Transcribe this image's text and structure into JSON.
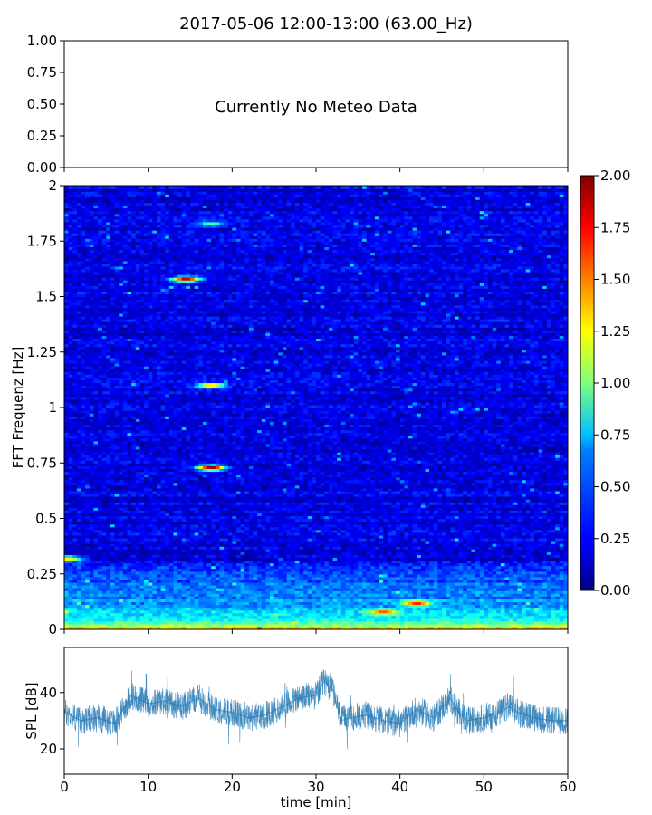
{
  "chart_data": [
    {
      "type": "text-panel",
      "title": "2017-05-06 12:00-13:00 (63.00_Hz)",
      "message": "Currently No Meteo Data",
      "ylim": [
        0,
        1
      ],
      "yticks": [
        {
          "v": 0.0,
          "label": "0.00"
        },
        {
          "v": 0.25,
          "label": "0.25"
        },
        {
          "v": 0.5,
          "label": "0.50"
        },
        {
          "v": 0.75,
          "label": "0.75"
        },
        {
          "v": 1.0,
          "label": "1.00"
        }
      ],
      "xlim": [
        0,
        60
      ],
      "xtick_positions": [
        0,
        10,
        20,
        30,
        40,
        50,
        60
      ]
    },
    {
      "type": "heatmap",
      "ylabel": "FFT Frequenz [Hz]",
      "xlim": [
        0,
        60
      ],
      "ylim": [
        0,
        2
      ],
      "yticks": [
        {
          "v": 0,
          "label": "0"
        },
        {
          "v": 0.25,
          "label": "0.25"
        },
        {
          "v": 0.5,
          "label": "0.5"
        },
        {
          "v": 0.75,
          "label": "0.75"
        },
        {
          "v": 1,
          "label": "1"
        },
        {
          "v": 1.25,
          "label": "1.25"
        },
        {
          "v": 1.5,
          "label": "1.5"
        },
        {
          "v": 1.75,
          "label": "1.75"
        },
        {
          "v": 2,
          "label": "2"
        }
      ],
      "xtick_positions": [
        0,
        10,
        20,
        30,
        40,
        50,
        60
      ],
      "colormap": "jet",
      "color_range": [
        0,
        2
      ],
      "colorbar_ticks": [
        {
          "v": 0.0,
          "label": "0.00"
        },
        {
          "v": 0.25,
          "label": "0.25"
        },
        {
          "v": 0.5,
          "label": "0.50"
        },
        {
          "v": 0.75,
          "label": "0.75"
        },
        {
          "v": 1.0,
          "label": "1.00"
        },
        {
          "v": 1.25,
          "label": "1.25"
        },
        {
          "v": 1.5,
          "label": "1.50"
        },
        {
          "v": 1.75,
          "label": "1.75"
        },
        {
          "v": 2.0,
          "label": "2.00"
        }
      ],
      "typical_level": 0.2,
      "low_frequency_levels": [
        {
          "freq": 0.0,
          "level": 1.5
        },
        {
          "freq": 0.02,
          "level": 1.0
        },
        {
          "freq": 0.06,
          "level": 0.7
        },
        {
          "freq": 0.15,
          "level": 0.5
        },
        {
          "freq": 0.3,
          "level": 0.35
        }
      ],
      "hotspots": [
        {
          "t": 14.5,
          "freq": 1.58,
          "level": 1.9
        },
        {
          "t": 17.5,
          "freq": 1.1,
          "level": 1.6
        },
        {
          "t": 17.5,
          "freq": 0.73,
          "level": 2.0
        },
        {
          "t": 17.5,
          "freq": 1.83,
          "level": 0.9
        },
        {
          "t": 0.5,
          "freq": 0.32,
          "level": 1.3
        },
        {
          "t": 42.0,
          "freq": 0.12,
          "level": 1.7
        },
        {
          "t": 38.0,
          "freq": 0.08,
          "level": 1.6
        }
      ]
    },
    {
      "type": "line",
      "xlabel": "time [min]",
      "ylabel": "SPL [dB]",
      "xlim": [
        0,
        60
      ],
      "ylim": [
        11,
        56
      ],
      "xticks": [
        {
          "v": 0,
          "label": "0"
        },
        {
          "v": 10,
          "label": "10"
        },
        {
          "v": 20,
          "label": "20"
        },
        {
          "v": 30,
          "label": "30"
        },
        {
          "v": 40,
          "label": "40"
        },
        {
          "v": 50,
          "label": "50"
        },
        {
          "v": 60,
          "label": "60"
        }
      ],
      "yticks": [
        {
          "v": 20,
          "label": "20"
        },
        {
          "v": 40,
          "label": "40"
        }
      ],
      "color": "#1f77b4",
      "series": [
        {
          "x": [
            0,
            2,
            4,
            6,
            8,
            10,
            12,
            14,
            16,
            18,
            20,
            22,
            24,
            26,
            28,
            30,
            31,
            32,
            33,
            34,
            36,
            38,
            40,
            42,
            44,
            46,
            47,
            48,
            50,
            52,
            53,
            54,
            56,
            58,
            60
          ],
          "y": [
            33,
            30,
            31,
            29,
            39,
            36,
            37,
            35,
            38,
            34,
            33,
            31,
            32,
            35,
            38,
            39,
            44,
            41,
            30,
            31,
            32,
            30,
            29,
            34,
            31,
            38,
            33,
            30,
            31,
            33,
            35,
            33,
            31,
            30,
            30
          ]
        }
      ]
    }
  ]
}
